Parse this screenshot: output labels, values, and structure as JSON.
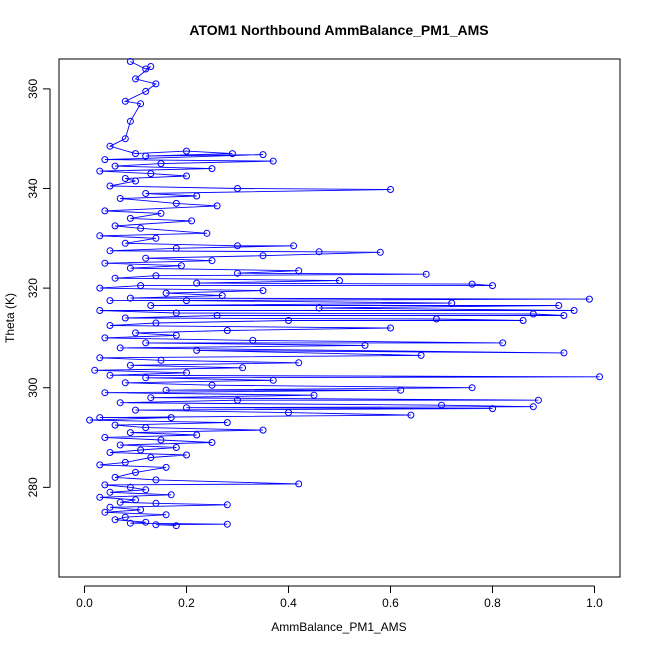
{
  "chart_data": {
    "type": "scatter",
    "title": "ATOM1 Northbound AmmBalance_PM1_AMS",
    "xlabel": "AmmBalance_PM1_AMS",
    "ylabel": "Theta (K)",
    "xlim": [
      -0.05,
      1.05
    ],
    "ylim": [
      262,
      366
    ],
    "xticks": [
      0.0,
      0.2,
      0.4,
      0.6,
      0.8,
      1.0
    ],
    "xtick_labels": [
      "0.0",
      "0.2",
      "0.4",
      "0.6",
      "0.8",
      "1.0"
    ],
    "yticks": [
      280,
      300,
      320,
      340,
      360
    ],
    "ytick_labels": [
      "280",
      "300",
      "320",
      "340",
      "360"
    ],
    "grid": false,
    "series_color": "#0000ff",
    "marker": "open-circle",
    "connected": true,
    "series": [
      {
        "points": [
          [
            0.09,
            365.5
          ],
          [
            0.12,
            364.0
          ],
          [
            0.13,
            364.5
          ],
          [
            0.1,
            362.0
          ],
          [
            0.14,
            361.0
          ],
          [
            0.12,
            359.5
          ],
          [
            0.08,
            357.5
          ],
          [
            0.11,
            357.0
          ],
          [
            0.09,
            353.5
          ],
          [
            0.08,
            350.0
          ],
          [
            0.05,
            348.5
          ],
          [
            0.1,
            347.0
          ],
          [
            0.2,
            347.5
          ],
          [
            0.29,
            347.0
          ],
          [
            0.12,
            346.5
          ],
          [
            0.35,
            346.8
          ],
          [
            0.04,
            345.8
          ],
          [
            0.37,
            345.5
          ],
          [
            0.15,
            345.0
          ],
          [
            0.06,
            344.5
          ],
          [
            0.25,
            344.0
          ],
          [
            0.03,
            343.5
          ],
          [
            0.13,
            343.0
          ],
          [
            0.2,
            342.5
          ],
          [
            0.08,
            342.0
          ],
          [
            0.1,
            341.5
          ],
          [
            0.05,
            340.5
          ],
          [
            0.3,
            340.0
          ],
          [
            0.6,
            339.8
          ],
          [
            0.12,
            339.0
          ],
          [
            0.22,
            338.5
          ],
          [
            0.07,
            338.0
          ],
          [
            0.18,
            337.0
          ],
          [
            0.26,
            336.5
          ],
          [
            0.04,
            335.5
          ],
          [
            0.15,
            335.0
          ],
          [
            0.09,
            334.0
          ],
          [
            0.21,
            333.5
          ],
          [
            0.06,
            332.5
          ],
          [
            0.11,
            332.0
          ],
          [
            0.24,
            331.0
          ],
          [
            0.03,
            330.5
          ],
          [
            0.14,
            330.0
          ],
          [
            0.08,
            329.0
          ],
          [
            0.3,
            328.5
          ],
          [
            0.41,
            328.5
          ],
          [
            0.18,
            328.0
          ],
          [
            0.05,
            327.5
          ],
          [
            0.46,
            327.3
          ],
          [
            0.58,
            327.2
          ],
          [
            0.35,
            326.5
          ],
          [
            0.12,
            326.0
          ],
          [
            0.25,
            325.5
          ],
          [
            0.04,
            325.0
          ],
          [
            0.19,
            324.5
          ],
          [
            0.09,
            324.0
          ],
          [
            0.42,
            323.5
          ],
          [
            0.3,
            323.0
          ],
          [
            0.67,
            322.8
          ],
          [
            0.14,
            322.5
          ],
          [
            0.06,
            322.0
          ],
          [
            0.5,
            321.5
          ],
          [
            0.22,
            321.0
          ],
          [
            0.76,
            320.8
          ],
          [
            0.8,
            320.5
          ],
          [
            0.11,
            320.5
          ],
          [
            0.03,
            320.0
          ],
          [
            0.35,
            319.5
          ],
          [
            0.16,
            319.0
          ],
          [
            0.27,
            318.5
          ],
          [
            0.09,
            318.0
          ],
          [
            0.99,
            317.8
          ],
          [
            0.05,
            317.5
          ],
          [
            0.2,
            317.5
          ],
          [
            0.72,
            317.0
          ],
          [
            0.13,
            316.5
          ],
          [
            0.93,
            316.5
          ],
          [
            0.46,
            316.0
          ],
          [
            0.96,
            315.5
          ],
          [
            0.03,
            315.5
          ],
          [
            0.18,
            315.0
          ],
          [
            0.88,
            314.8
          ],
          [
            0.94,
            314.5
          ],
          [
            0.26,
            314.5
          ],
          [
            0.08,
            314.0
          ],
          [
            0.69,
            313.8
          ],
          [
            0.86,
            313.5
          ],
          [
            0.4,
            313.5
          ],
          [
            0.14,
            313.0
          ],
          [
            0.05,
            312.5
          ],
          [
            0.6,
            312.0
          ],
          [
            0.28,
            311.5
          ],
          [
            0.1,
            311.0
          ],
          [
            0.18,
            310.5
          ],
          [
            0.04,
            310.0
          ],
          [
            0.33,
            309.5
          ],
          [
            0.82,
            309.0
          ],
          [
            0.12,
            309.0
          ],
          [
            0.55,
            308.5
          ],
          [
            0.07,
            308.0
          ],
          [
            0.94,
            307.0
          ],
          [
            0.22,
            307.5
          ],
          [
            0.66,
            306.5
          ],
          [
            0.03,
            306.0
          ],
          [
            0.15,
            305.5
          ],
          [
            0.42,
            305.0
          ],
          [
            0.09,
            304.5
          ],
          [
            0.31,
            304.0
          ],
          [
            0.02,
            303.5
          ],
          [
            0.2,
            303.0
          ],
          [
            0.05,
            302.5
          ],
          [
            1.01,
            302.2
          ],
          [
            0.12,
            302.0
          ],
          [
            0.37,
            301.5
          ],
          [
            0.08,
            301.0
          ],
          [
            0.25,
            300.5
          ],
          [
            0.76,
            300.0
          ],
          [
            0.16,
            299.5
          ],
          [
            0.62,
            299.5
          ],
          [
            0.04,
            299.0
          ],
          [
            0.45,
            298.5
          ],
          [
            0.13,
            298.0
          ],
          [
            0.89,
            297.5
          ],
          [
            0.3,
            297.5
          ],
          [
            0.07,
            297.0
          ],
          [
            0.7,
            296.5
          ],
          [
            0.88,
            296.2
          ],
          [
            0.2,
            296.0
          ],
          [
            0.8,
            295.8
          ],
          [
            0.1,
            295.5
          ],
          [
            0.4,
            295.0
          ],
          [
            0.64,
            294.5
          ],
          [
            0.03,
            294.0
          ],
          [
            0.17,
            294.0
          ],
          [
            0.01,
            293.5
          ],
          [
            0.28,
            293.0
          ],
          [
            0.06,
            292.5
          ],
          [
            0.12,
            292.0
          ],
          [
            0.35,
            291.5
          ],
          [
            0.09,
            291.0
          ],
          [
            0.22,
            290.5
          ],
          [
            0.04,
            290.0
          ],
          [
            0.15,
            289.5
          ],
          [
            0.25,
            289.0
          ],
          [
            0.07,
            288.5
          ],
          [
            0.18,
            288.0
          ],
          [
            0.11,
            287.5
          ],
          [
            0.05,
            287.0
          ],
          [
            0.2,
            286.5
          ],
          [
            0.13,
            286.0
          ],
          [
            0.08,
            285.0
          ],
          [
            0.03,
            284.5
          ],
          [
            0.16,
            284.0
          ],
          [
            0.1,
            283.0
          ],
          [
            0.06,
            282.0
          ],
          [
            0.14,
            281.5
          ],
          [
            0.42,
            280.7
          ],
          [
            0.04,
            280.5
          ],
          [
            0.09,
            280.0
          ],
          [
            0.12,
            279.5
          ],
          [
            0.05,
            279.0
          ],
          [
            0.17,
            278.5
          ],
          [
            0.03,
            278.0
          ],
          [
            0.1,
            277.5
          ],
          [
            0.07,
            277.0
          ],
          [
            0.14,
            276.8
          ],
          [
            0.28,
            276.5
          ],
          [
            0.05,
            276.0
          ],
          [
            0.11,
            275.5
          ],
          [
            0.04,
            275.0
          ],
          [
            0.16,
            274.5
          ],
          [
            0.08,
            274.0
          ],
          [
            0.06,
            273.5
          ],
          [
            0.12,
            273.0
          ],
          [
            0.09,
            272.8
          ],
          [
            0.28,
            272.6
          ],
          [
            0.14,
            272.5
          ],
          [
            0.18,
            272.3
          ]
        ]
      }
    ]
  }
}
